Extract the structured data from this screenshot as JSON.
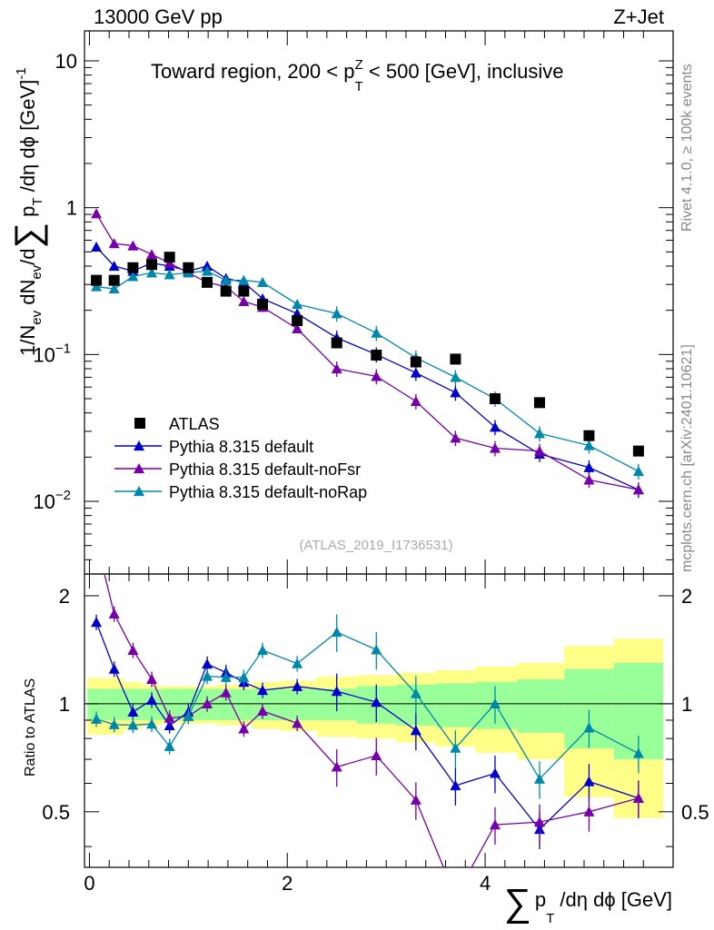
{
  "header": {
    "left": "13000 GeV pp",
    "right": "Z+Jet"
  },
  "title": {
    "prefix": "Toward region, 200 < p",
    "sub": "T",
    "sup": "Z",
    "suffix": " < 500 [GeV], inclusive"
  },
  "side_text": {
    "rivet": "Rivet 4.1.0, ≥ 100k events",
    "mcplots": "mcplots.cern.ch [arXiv:2401.10621]"
  },
  "watermark": "(ATLAS_2019_I1736531)",
  "y_axis_main": {
    "pre": "1/N",
    "ev1": "ev",
    "mid": " dN",
    "ev2": "ev",
    "post": "/d",
    "sum": "∑",
    "p": " p",
    "t": "T",
    "rest": " /dη dϕ  [GeV]",
    "exp": "-1"
  },
  "y_axis_ratio": "Ratio to ATLAS",
  "x_axis": {
    "sum": "∑",
    "p": "p",
    "t": "T",
    "rest": " /dη dϕ [GeV]"
  },
  "main_ticks": [
    {
      "base": "10",
      "exp": "",
      "value": 10
    },
    {
      "base": "1",
      "exp": "",
      "value": 1
    },
    {
      "base": "10",
      "exp": "−1",
      "value": 0.1
    },
    {
      "base": "10",
      "exp": "−2",
      "value": 0.01
    }
  ],
  "ratio_ticks": [
    {
      "label": "2",
      "value": 2
    },
    {
      "label": "1",
      "value": 1
    },
    {
      "label": "0.5",
      "value": 0.5
    }
  ],
  "x_ticks": [
    {
      "label": "0",
      "value": 0
    },
    {
      "label": "2",
      "value": 2
    },
    {
      "label": "4",
      "value": 4
    }
  ],
  "chart_data": {
    "type": "scatter",
    "xlim": [
      -0.05,
      5.9
    ],
    "ylim": [
      0.0032,
      16
    ],
    "ratio_ylim": [
      0.35,
      2.3
    ],
    "x": [
      0.07,
      0.25,
      0.44,
      0.63,
      0.81,
      1.0,
      1.19,
      1.38,
      1.56,
      1.75,
      2.1,
      2.5,
      2.9,
      3.3,
      3.7,
      4.1,
      4.55,
      5.05,
      5.55
    ],
    "data": {
      "name": "ATLAS",
      "values": [
        0.32,
        0.32,
        0.39,
        0.41,
        0.46,
        0.39,
        0.31,
        0.27,
        0.27,
        0.22,
        0.17,
        0.12,
        0.099,
        0.089,
        0.093,
        0.05,
        0.047,
        0.028,
        0.022
      ],
      "band_inner": [
        0.1,
        0.1,
        0.1,
        0.1,
        0.1,
        0.1,
        0.1,
        0.1,
        0.1,
        0.1,
        0.1,
        0.1,
        0.12,
        0.13,
        0.14,
        0.15,
        0.17,
        0.25,
        0.3
      ],
      "band_outer": [
        0.18,
        0.18,
        0.15,
        0.13,
        0.12,
        0.12,
        0.12,
        0.13,
        0.13,
        0.15,
        0.16,
        0.19,
        0.2,
        0.22,
        0.24,
        0.27,
        0.3,
        0.45,
        0.52
      ]
    },
    "series": [
      {
        "name": "Pythia 8.315 default",
        "color": "#0000cc",
        "values": [
          0.54,
          0.4,
          0.37,
          0.42,
          0.4,
          0.37,
          0.4,
          0.33,
          0.31,
          0.24,
          0.19,
          0.13,
          0.1,
          0.075,
          0.055,
          0.032,
          0.021,
          0.017,
          0.012
        ]
      },
      {
        "name": "Pythia 8.315 default-noFsr",
        "color": "#7700aa",
        "values": [
          0.91,
          0.57,
          0.55,
          0.48,
          0.42,
          0.36,
          0.31,
          0.29,
          0.23,
          0.21,
          0.15,
          0.08,
          0.071,
          0.048,
          0.027,
          0.023,
          0.022,
          0.014,
          0.012
        ]
      },
      {
        "name": "Pythia 8.315 default-noRap",
        "color": "#0088aa",
        "values": [
          0.29,
          0.28,
          0.34,
          0.36,
          0.35,
          0.36,
          0.37,
          0.32,
          0.32,
          0.31,
          0.22,
          0.19,
          0.14,
          0.095,
          0.07,
          0.05,
          0.029,
          0.024,
          0.016
        ]
      }
    ]
  }
}
